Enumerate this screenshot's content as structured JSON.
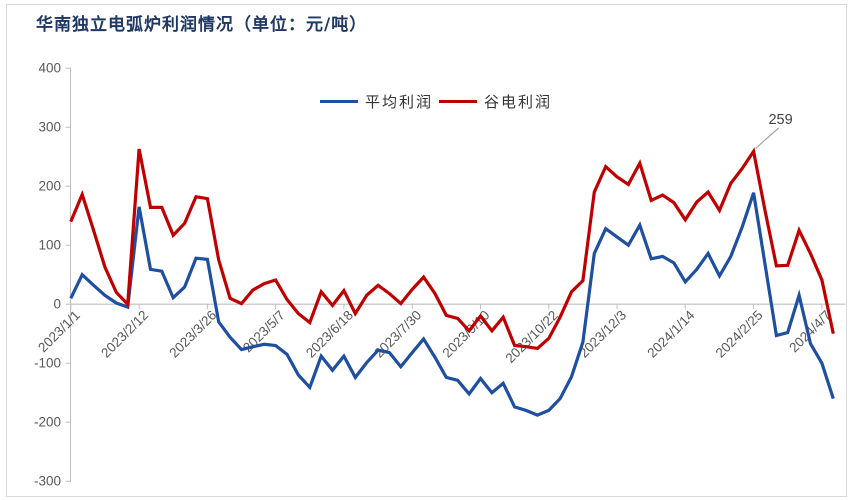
{
  "title": "华南独立电弧炉利润情况（单位：元/吨）",
  "colors": {
    "title": "#1f3864",
    "average_line": "#1f4fa0",
    "valley_line": "#c00000",
    "axis": "#bfbfbf",
    "tick_text": "#595959",
    "annotation_text": "#404040",
    "annotation_leader": "#a6a6a6",
    "frame": "#d9d9d9",
    "background": "#ffffff"
  },
  "chart_data": {
    "type": "line",
    "title": "华南独立电弧炉利润情况（单位：元/吨）",
    "xlabel": "",
    "ylabel": "",
    "ylim": [
      -300,
      400
    ],
    "y_ticks": [
      400,
      300,
      200,
      100,
      0,
      -100,
      -200,
      -300
    ],
    "grid": "zero-line-only",
    "legend_position": "top-center",
    "x_tick_labels": [
      "2023/1/1",
      "2023/2/12",
      "2023/3/26",
      "2023/5/7",
      "2023/6/18",
      "2023/7/30",
      "2023/9/10",
      "2023/10/22",
      "2023/12/3",
      "2024/1/14",
      "2024/2/25",
      "2024/4/7"
    ],
    "label_indices": [
      0,
      6,
      12,
      18,
      24,
      30,
      36,
      42,
      48,
      54,
      60,
      66
    ],
    "series": [
      {
        "name": "平均利润",
        "color": "#1f4fa0",
        "values": [
          10,
          50,
          32,
          15,
          2,
          -5,
          165,
          59,
          56,
          11,
          29,
          78,
          76,
          -30,
          -56,
          -77,
          -72,
          -68,
          -70,
          -85,
          -120,
          -141,
          -88,
          -112,
          -88,
          -124,
          -99,
          -78,
          -82,
          -106,
          -82,
          -59,
          -90,
          -124,
          -129,
          -152,
          -126,
          -150,
          -134,
          -174,
          -180,
          -188,
          -180,
          -160,
          -123,
          -64,
          86,
          128,
          114,
          100,
          134,
          77,
          81,
          70,
          38,
          59,
          86,
          48,
          81,
          131,
          189,
          68,
          -53,
          -48,
          15,
          -67,
          -100,
          -160
        ]
      },
      {
        "name": "谷电利润",
        "color": "#c00000",
        "values": [
          140,
          186,
          125,
          63,
          20,
          0,
          263,
          164,
          164,
          117,
          137,
          182,
          179,
          75,
          10,
          1,
          24,
          35,
          41,
          8,
          -16,
          -31,
          21,
          -2,
          23,
          -16,
          15,
          32,
          18,
          1,
          25,
          46,
          18,
          -19,
          -24,
          -45,
          -20,
          -45,
          -22,
          -70,
          -72,
          -75,
          -58,
          -22,
          21,
          40,
          190,
          233,
          216,
          203,
          239,
          176,
          185,
          172,
          143,
          173,
          190,
          159,
          205,
          230,
          259,
          159,
          65,
          66,
          125,
          86,
          41,
          -50
        ]
      }
    ],
    "annotation": {
      "text": "259",
      "series": "谷电利润",
      "index": 60,
      "value": 259
    }
  }
}
